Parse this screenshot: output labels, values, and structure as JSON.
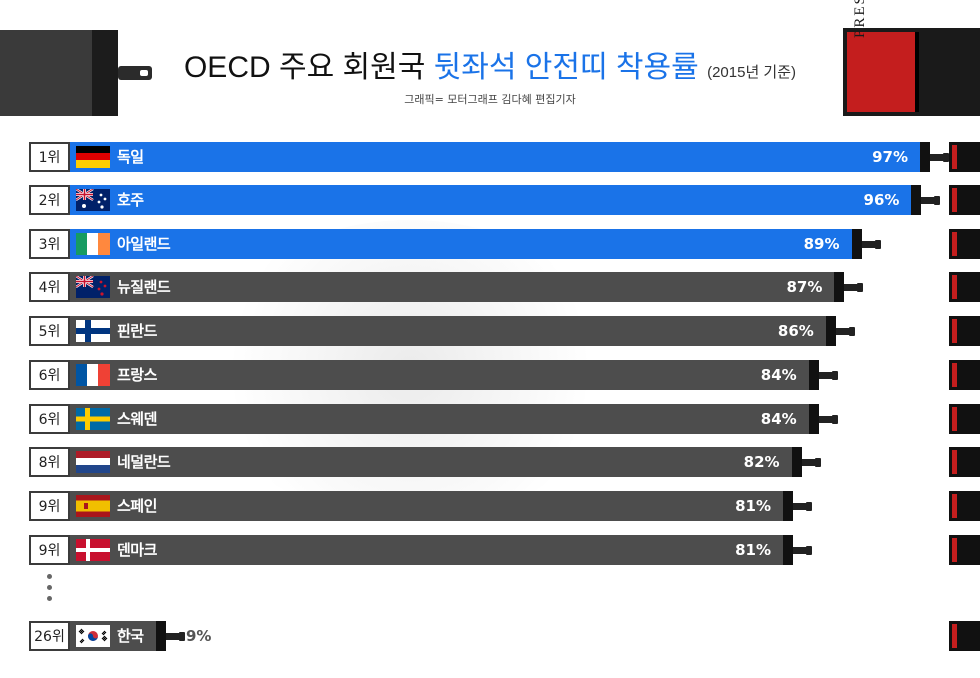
{
  "title": {
    "prefix": "OECD 주요 회원국 ",
    "highlight": "뒷좌석 안전띠 착용률",
    "suffix": "(2015년 기준)"
  },
  "credit": "그래픽= 모터그래프 김다혜 편집기자",
  "press_label": "PRESS",
  "colors": {
    "top3": "#1a73e8",
    "others": "#4d4d4d",
    "accent_red": "#c41e1e"
  },
  "chart_data": {
    "type": "bar",
    "orientation": "horizontal",
    "categories": [
      "독일",
      "호주",
      "아일랜드",
      "뉴질랜드",
      "핀란드",
      "프랑스",
      "스웨덴",
      "네덜란드",
      "스페인",
      "덴마크",
      "한국"
    ],
    "ranks": [
      "1위",
      "2위",
      "3위",
      "4위",
      "5위",
      "6위",
      "6위",
      "8위",
      "9위",
      "9위",
      "26위"
    ],
    "values": [
      97,
      96,
      89,
      87,
      86,
      84,
      84,
      82,
      81,
      81,
      9
    ],
    "value_labels": [
      "97%",
      "96%",
      "89%",
      "87%",
      "86%",
      "84%",
      "84%",
      "82%",
      "81%",
      "81%",
      "9%"
    ],
    "flags": [
      "germany",
      "australia",
      "ireland",
      "new-zealand",
      "finland",
      "france",
      "sweden",
      "netherlands",
      "spain",
      "denmark",
      "south-korea"
    ],
    "unit": "%",
    "xlim": [
      0,
      100
    ],
    "highlight_top": 3,
    "grid": false,
    "legend": "none"
  }
}
